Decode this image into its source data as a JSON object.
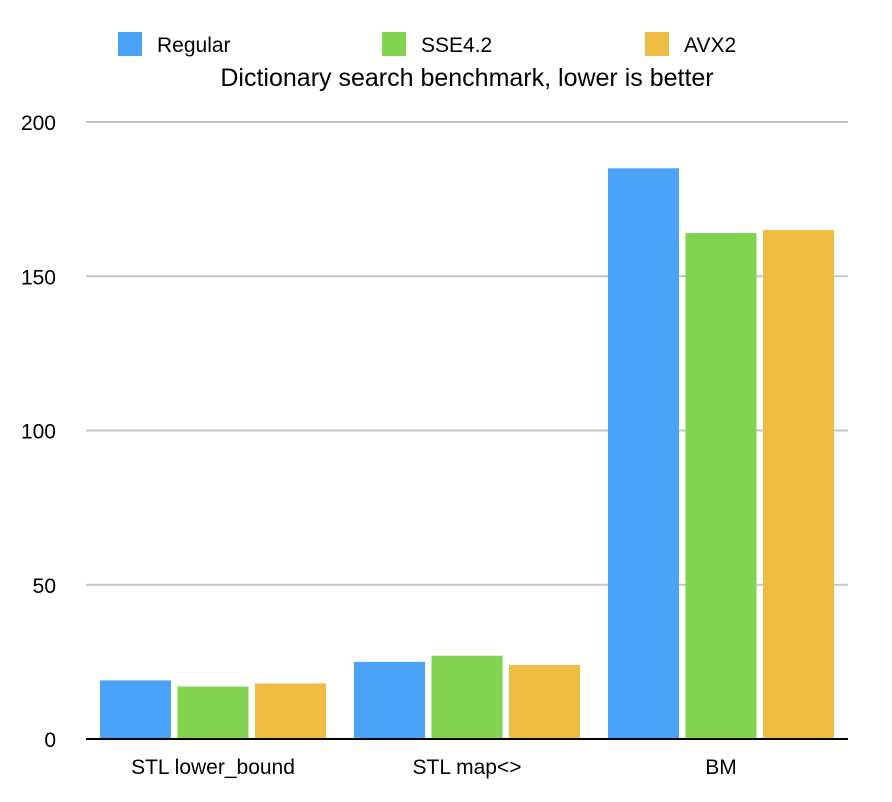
{
  "chart_data": {
    "type": "bar",
    "title": "Dictionary search benchmark, lower is better",
    "categories": [
      "STL lower_bound",
      "STL map<>",
      "BM"
    ],
    "series": [
      {
        "name": "Regular",
        "color": "#4aa3f7",
        "values": [
          19,
          25,
          185
        ]
      },
      {
        "name": "SSE4.2",
        "color": "#82d450",
        "values": [
          17,
          27,
          164
        ]
      },
      {
        "name": "AVX2",
        "color": "#efbc42",
        "values": [
          18,
          24,
          165
        ]
      }
    ],
    "ylim": [
      0,
      200
    ],
    "yticks": [
      0,
      50,
      100,
      150,
      200
    ],
    "grid": true,
    "legend_position": "top"
  }
}
